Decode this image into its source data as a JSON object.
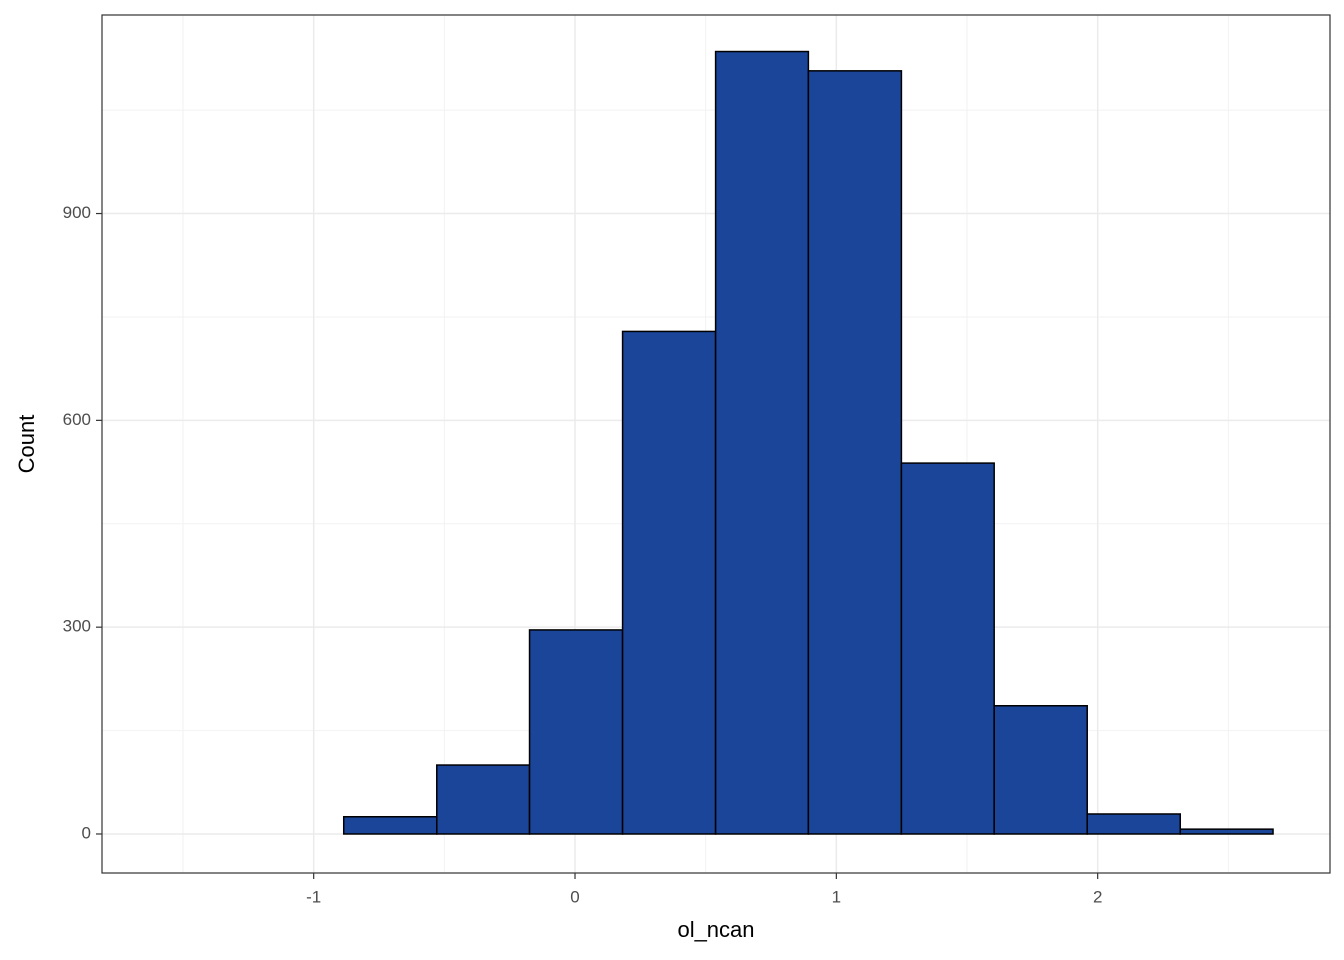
{
  "chart_data": {
    "type": "histogram",
    "x_label": "ol_ncan",
    "y_label": "Count",
    "bins": [
      -1.596,
      -1.24,
      -0.885,
      -0.529,
      -0.174,
      0.182,
      0.538,
      0.893,
      1.249,
      1.604,
      1.96,
      2.316,
      2.671
    ],
    "values": [
      0,
      0,
      25,
      100,
      296,
      729,
      1135,
      1107,
      538,
      186,
      29,
      7
    ],
    "color": "#1a4599",
    "edge_color": "#000000",
    "xlim": [
      -1.81,
      2.889
    ],
    "ylim": [
      -56.6,
      1188
    ],
    "xticks": [
      -1,
      0,
      1,
      2
    ],
    "yticks": [
      0,
      300,
      600,
      900
    ],
    "x_minor_grid": [
      -1.5,
      -0.5,
      0.5,
      1.5,
      2.5
    ],
    "y_minor_grid": [
      150,
      450,
      750,
      1050
    ],
    "grid": true
  }
}
